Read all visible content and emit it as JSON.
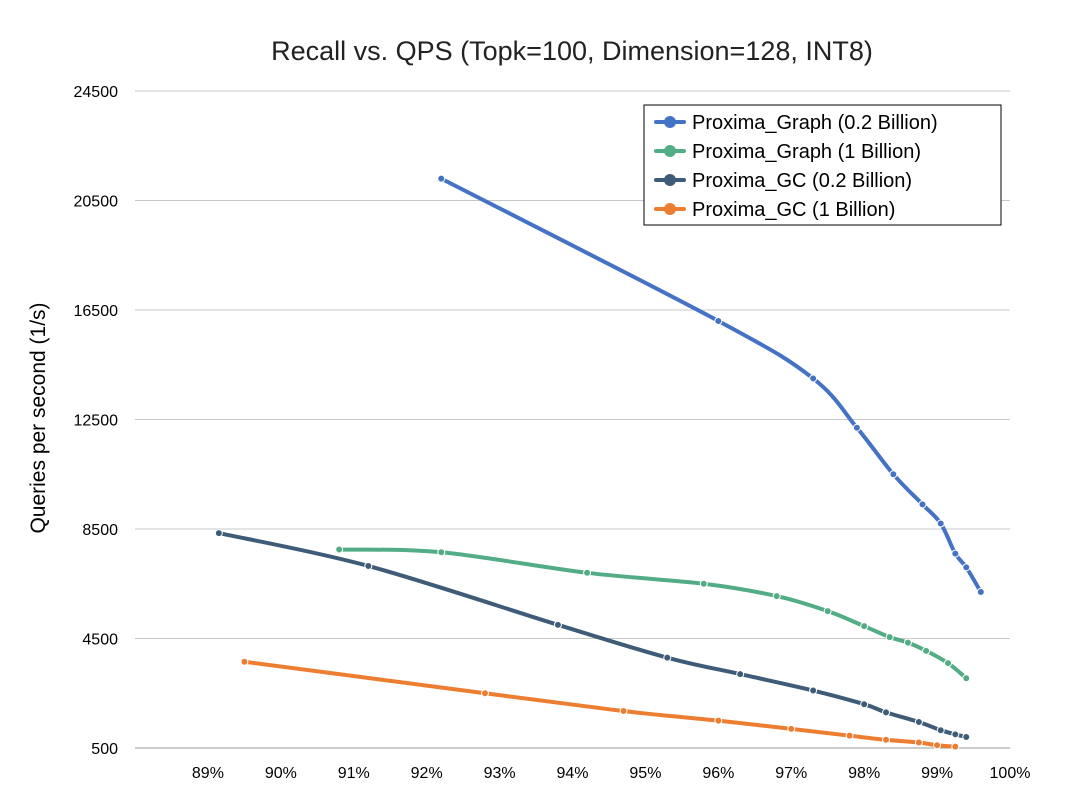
{
  "chart_data": {
    "type": "line",
    "title": "Recall vs. QPS (Topk=100, Dimension=128, INT8)",
    "xlabel": "",
    "ylabel": "Queries per second (1/s)",
    "xlim": [
      88,
      100
    ],
    "ylim": [
      500,
      24500
    ],
    "x_ticks": [
      89,
      90,
      91,
      92,
      93,
      94,
      95,
      96,
      97,
      98,
      99,
      100
    ],
    "x_tick_labels": [
      "89%",
      "90%",
      "91%",
      "92%",
      "93%",
      "94%",
      "95%",
      "96%",
      "97%",
      "98%",
      "99%",
      "100%"
    ],
    "y_ticks": [
      500,
      4500,
      8500,
      12500,
      16500,
      20500,
      24500
    ],
    "y_tick_labels": [
      "500",
      "4500",
      "8500",
      "12500",
      "16500",
      "20500",
      "24500"
    ],
    "grid": {
      "horizontal": true,
      "vertical": false
    },
    "legend_position": "top-right",
    "series": [
      {
        "name": "Proxima_Graph (0.2 Billion)",
        "color": "#4472C4",
        "x": [
          92.2,
          96.0,
          97.3,
          97.9,
          98.4,
          98.8,
          99.05,
          99.25,
          99.4,
          99.6
        ],
        "y": [
          21300,
          16100,
          14000,
          12200,
          10500,
          9400,
          8700,
          7600,
          7100,
          6200
        ]
      },
      {
        "name": "Proxima_Graph (1 Billion)",
        "color": "#52AD86",
        "x": [
          90.8,
          92.2,
          94.2,
          95.8,
          96.8,
          97.5,
          98.0,
          98.35,
          98.6,
          98.85,
          99.15,
          99.4
        ],
        "y": [
          7750,
          7650,
          6900,
          6500,
          6050,
          5500,
          4950,
          4550,
          4350,
          4050,
          3600,
          3050
        ]
      },
      {
        "name": "Proxima_GC (0.2 Billion)",
        "color": "#3E5C78",
        "x": [
          89.15,
          91.2,
          93.8,
          95.3,
          96.3,
          97.3,
          98.0,
          98.3,
          98.75,
          99.05,
          99.25,
          99.4
        ],
        "y": [
          8350,
          7150,
          5000,
          3800,
          3200,
          2600,
          2100,
          1800,
          1450,
          1150,
          1000,
          900
        ]
      },
      {
        "name": "Proxima_GC (1 Billion)",
        "color": "#ED7D31",
        "x": [
          89.5,
          92.8,
          94.7,
          96.0,
          97.0,
          97.8,
          98.3,
          98.75,
          99.0,
          99.25
        ],
        "y": [
          3650,
          2500,
          1850,
          1500,
          1200,
          950,
          800,
          700,
          600,
          550
        ]
      }
    ]
  }
}
